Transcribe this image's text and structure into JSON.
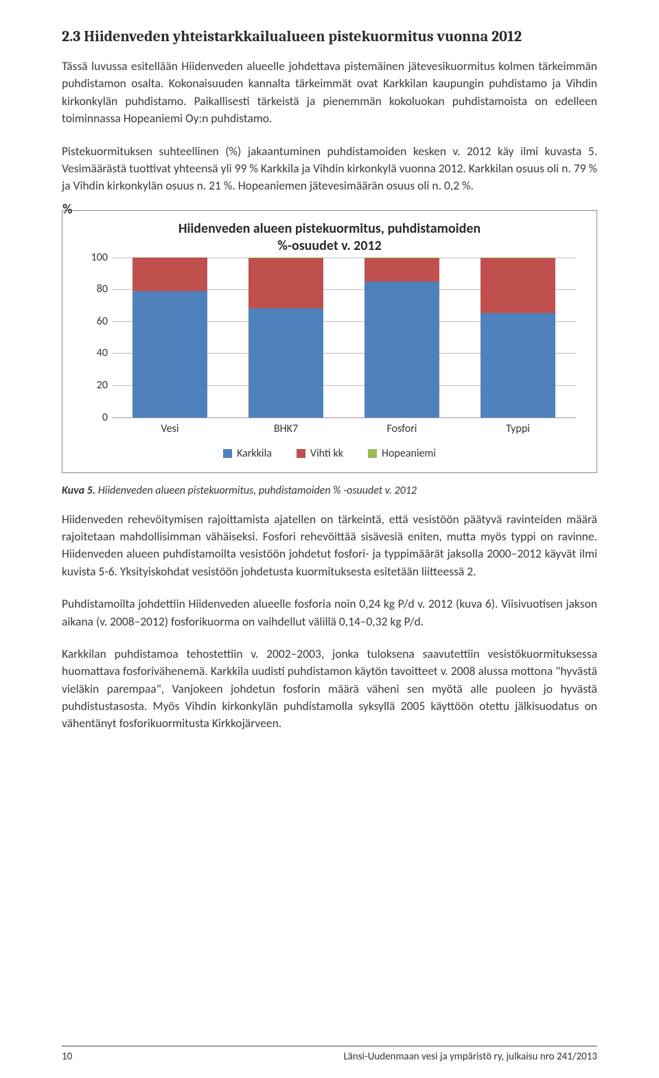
{
  "heading": "2.3  Hiidenveden yhteistarkkailualueen pistekuormitus vuonna 2012",
  "para1": "Tässä luvussa esitellään Hiidenveden alueelle johdettava pistemäinen jätevesikuormitus kolmen tärkeimmän puhdistamon osalta. Kokonaisuuden kannalta tärkeimmät ovat Karkkilan kaupungin puhdistamo ja Vihdin kirkonkylän puhdistamo. Paikallisesti tärkeistä ja pienemmän kokoluokan puhdistamoista on edelleen toiminnassa Hopeaniemi Oy:n puhdistamo.",
  "para2": "Pistekuormituksen suhteellinen (%) jakaantuminen puhdistamoiden kesken v. 2012 käy ilmi kuvasta 5. Vesimäärästä tuottivat yhteensä yli 99 % Karkkila ja Vihdin kirkonkylä vuonna 2012. Karkkilan osuus oli n. 79 % ja Vihdin kirkonkylän osuus n. 21 %. Hopeaniemen jätevesimäärän osuus oli n. 0,2 %.",
  "chart": {
    "title_line1": "Hiidenveden alueen pistekuormitus, puhdistamoiden",
    "title_line2": "%-osuudet v. 2012",
    "ylabel": "%",
    "yticks": [
      0,
      20,
      40,
      60,
      80,
      100
    ],
    "categories": [
      "Vesi",
      "BHK7",
      "Fosfori",
      "Typpi"
    ],
    "series": [
      {
        "name": "Karkkila",
        "color": "#4f81bd"
      },
      {
        "name": "Vihti kk",
        "color": "#c0504d"
      },
      {
        "name": "Hopeaniemi",
        "color": "#9bbb59"
      }
    ],
    "stacks": [
      {
        "karkkila": 79,
        "vihti": 20.8,
        "hopeaniemi": 0.2
      },
      {
        "karkkila": 68,
        "vihti": 31.5,
        "hopeaniemi": 0.5
      },
      {
        "karkkila": 85,
        "vihti": 14.5,
        "hopeaniemi": 0.5
      },
      {
        "karkkila": 65,
        "vihti": 34.5,
        "hopeaniemi": 0.5
      }
    ],
    "grid_color": "#bfbfbf",
    "border_color": "#888888"
  },
  "caption": "Kuva 5. Hiidenveden alueen pistekuormitus, puhdistamoiden % -osuudet v. 2012",
  "para3": "Hiidenveden rehevöitymisen rajoittamista ajatellen on tärkeintä, että vesistöön päätyvä ravinteiden määrä rajoitetaan mahdollisimman vähäiseksi. Fosfori rehevöittää sisävesiä eniten, mutta myös typpi on ravinne. Hiidenveden alueen puhdistamoilta vesistöön johdetut fosfori- ja typpimäärät jaksolla 2000–2012 käyvät ilmi kuvista 5-6. Yksityiskohdat vesistöön johdetusta kuormituksesta esitetään liitteessä 2.",
  "para4": "Puhdistamoilta johdettiin Hiidenveden alueelle fosforia noin 0,24 kg P/d v. 2012 (kuva 6). Viisivuotisen jakson aikana (v. 2008–2012) fosforikuorma on vaihdellut välillä 0,14–0,32 kg P/d.",
  "para5": "Karkkilan puhdistamoa tehostettiin v. 2002–2003, jonka tuloksena saavutettiin vesistökuormituksessa huomattava fosforivähenemä. Karkkila uudisti puhdistamon käytön tavoitteet v. 2008 alussa mottona \"hyvästä vieläkin parempaa\", Vanjokeen johdetun fosforin määrä väheni sen myötä alle puoleen jo hyvästä puhdistustasosta. Myös Vihdin kirkonkylän puhdistamolla syksyllä 2005 käyttöön otettu jälkisuodatus on vähentänyt fosforikuormitusta Kirkkojärveen.",
  "footer": {
    "page": "10",
    "text": "Länsi-Uudenmaan vesi ja ympäristö ry, julkaisu nro 241/2013"
  }
}
